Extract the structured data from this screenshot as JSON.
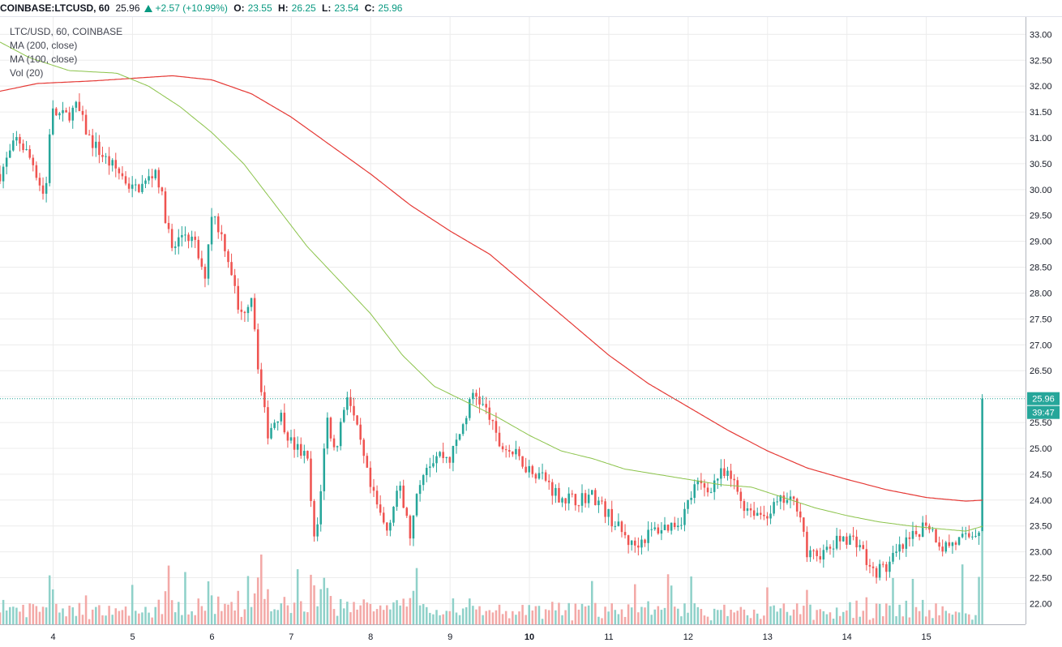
{
  "header": {
    "symbol": "COINBASE:LTCUSD, 60",
    "last": "25.96",
    "change": "+2.57 (+10.99%)",
    "open_label": "O:",
    "open": "23.55",
    "high_label": "H:",
    "high": "26.25",
    "low_label": "L:",
    "low": "23.54",
    "close_label": "C:",
    "close": "25.96"
  },
  "legend": {
    "title": "LTC/USD, 60, COINBASE",
    "ma200": "MA (200, close)",
    "ma100": "MA (100, close)",
    "vol": "Vol (20)"
  },
  "colors": {
    "up": "#26a69a",
    "down": "#ef5350",
    "vol_up": "#8fd1c9",
    "vol_down": "#f3a9a7",
    "ma200": "#e53935",
    "ma100": "#8bc34a",
    "price_label": "#26a69a",
    "grid": "#ececec"
  },
  "chart_data": {
    "type": "candlestick",
    "symbol": "LTC/USD",
    "interval": "60",
    "y_ticks": [
      "33.00",
      "32.50",
      "32.00",
      "31.50",
      "31.00",
      "30.50",
      "30.00",
      "29.50",
      "29.00",
      "28.50",
      "28.00",
      "27.50",
      "27.00",
      "26.50",
      "26.00",
      "25.50",
      "25.00",
      "24.50",
      "24.00",
      "23.50",
      "23.00",
      "22.50",
      "22.00"
    ],
    "ylim": [
      21.6,
      33.35
    ],
    "x_ticks": [
      {
        "label": "4",
        "day": 4,
        "bold": false
      },
      {
        "label": "5",
        "day": 5,
        "bold": false
      },
      {
        "label": "6",
        "day": 6,
        "bold": false
      },
      {
        "label": "7",
        "day": 7,
        "bold": false
      },
      {
        "label": "8",
        "day": 8,
        "bold": false
      },
      {
        "label": "9",
        "day": 9,
        "bold": false
      },
      {
        "label": "10",
        "day": 10,
        "bold": true
      },
      {
        "label": "11",
        "day": 11,
        "bold": false
      },
      {
        "label": "12",
        "day": 12,
        "bold": false
      },
      {
        "label": "13",
        "day": 13,
        "bold": false
      },
      {
        "label": "14",
        "day": 14,
        "bold": false
      },
      {
        "label": "15",
        "day": 15,
        "bold": false
      }
    ],
    "xlim_days": [
      3.33,
      16.25
    ],
    "close_keypoints": [
      [
        3.33,
        30.3
      ],
      [
        3.55,
        31.0
      ],
      [
        3.75,
        30.5
      ],
      [
        3.9,
        29.8
      ],
      [
        3.97,
        31.5
      ],
      [
        4.15,
        31.4
      ],
      [
        4.3,
        31.6
      ],
      [
        4.45,
        31.0
      ],
      [
        4.65,
        30.6
      ],
      [
        4.85,
        30.3
      ],
      [
        5.0,
        30.0
      ],
      [
        5.15,
        30.1
      ],
      [
        5.3,
        30.4
      ],
      [
        5.5,
        28.8
      ],
      [
        5.65,
        29.2
      ],
      [
        5.8,
        28.9
      ],
      [
        5.9,
        28.2
      ],
      [
        6.0,
        29.6
      ],
      [
        6.15,
        29.0
      ],
      [
        6.25,
        28.4
      ],
      [
        6.35,
        27.5
      ],
      [
        6.5,
        28.0
      ],
      [
        6.6,
        26.3
      ],
      [
        6.7,
        25.3
      ],
      [
        6.85,
        25.7
      ],
      [
        7.0,
        25.1
      ],
      [
        7.2,
        24.8
      ],
      [
        7.3,
        23.0
      ],
      [
        7.45,
        25.6
      ],
      [
        7.55,
        24.9
      ],
      [
        7.7,
        26.1
      ],
      [
        7.85,
        25.2
      ],
      [
        8.0,
        24.2
      ],
      [
        8.2,
        23.4
      ],
      [
        8.35,
        24.3
      ],
      [
        8.5,
        23.3
      ],
      [
        8.65,
        24.6
      ],
      [
        8.85,
        24.9
      ],
      [
        9.0,
        24.8
      ],
      [
        9.15,
        25.4
      ],
      [
        9.3,
        26.1
      ],
      [
        9.5,
        25.6
      ],
      [
        9.6,
        25.1
      ],
      [
        9.8,
        24.9
      ],
      [
        10.0,
        24.6
      ],
      [
        10.15,
        24.5
      ],
      [
        10.35,
        24.1
      ],
      [
        10.55,
        24.0
      ],
      [
        10.8,
        24.1
      ],
      [
        11.05,
        23.6
      ],
      [
        11.3,
        23.1
      ],
      [
        11.55,
        23.4
      ],
      [
        11.75,
        23.5
      ],
      [
        11.9,
        23.6
      ],
      [
        12.1,
        24.3
      ],
      [
        12.25,
        24.2
      ],
      [
        12.4,
        24.5
      ],
      [
        12.55,
        24.4
      ],
      [
        12.7,
        23.9
      ],
      [
        12.95,
        23.7
      ],
      [
        13.2,
        24.0
      ],
      [
        13.4,
        23.9
      ],
      [
        13.5,
        22.9
      ],
      [
        13.75,
        23.0
      ],
      [
        13.95,
        23.3
      ],
      [
        14.15,
        23.2
      ],
      [
        14.3,
        22.6
      ],
      [
        14.5,
        22.7
      ],
      [
        14.65,
        23.0
      ],
      [
        14.85,
        23.3
      ],
      [
        15.0,
        23.6
      ],
      [
        15.2,
        23.1
      ],
      [
        15.4,
        23.2
      ],
      [
        15.55,
        23.3
      ],
      [
        15.7,
        23.5
      ],
      [
        15.72,
        25.96
      ]
    ],
    "ma200_keypoints": [
      [
        3.33,
        31.9
      ],
      [
        3.8,
        32.05
      ],
      [
        4.5,
        32.1
      ],
      [
        5.5,
        32.2
      ],
      [
        6.0,
        32.12
      ],
      [
        6.5,
        31.85
      ],
      [
        7.0,
        31.4
      ],
      [
        7.5,
        30.85
      ],
      [
        8.0,
        30.3
      ],
      [
        8.5,
        29.7
      ],
      [
        9.0,
        29.2
      ],
      [
        9.5,
        28.75
      ],
      [
        10.0,
        28.1
      ],
      [
        10.5,
        27.45
      ],
      [
        11.0,
        26.8
      ],
      [
        11.5,
        26.25
      ],
      [
        12.0,
        25.8
      ],
      [
        12.5,
        25.35
      ],
      [
        13.0,
        24.95
      ],
      [
        13.5,
        24.62
      ],
      [
        14.0,
        24.4
      ],
      [
        14.5,
        24.2
      ],
      [
        15.0,
        24.05
      ],
      [
        15.5,
        23.98
      ],
      [
        15.72,
        24.0
      ]
    ],
    "ma100_keypoints": [
      [
        3.33,
        32.85
      ],
      [
        3.7,
        32.55
      ],
      [
        4.2,
        32.3
      ],
      [
        4.8,
        32.25
      ],
      [
        5.2,
        32.0
      ],
      [
        5.6,
        31.6
      ],
      [
        6.0,
        31.1
      ],
      [
        6.4,
        30.5
      ],
      [
        6.8,
        29.7
      ],
      [
        7.2,
        28.9
      ],
      [
        7.6,
        28.25
      ],
      [
        8.0,
        27.6
      ],
      [
        8.4,
        26.8
      ],
      [
        8.8,
        26.2
      ],
      [
        9.2,
        25.9
      ],
      [
        9.6,
        25.6
      ],
      [
        10.0,
        25.25
      ],
      [
        10.4,
        24.95
      ],
      [
        10.8,
        24.8
      ],
      [
        11.2,
        24.6
      ],
      [
        11.6,
        24.5
      ],
      [
        12.0,
        24.4
      ],
      [
        12.4,
        24.3
      ],
      [
        12.8,
        24.25
      ],
      [
        13.2,
        24.05
      ],
      [
        13.6,
        23.85
      ],
      [
        14.0,
        23.7
      ],
      [
        14.4,
        23.58
      ],
      [
        14.8,
        23.5
      ],
      [
        15.2,
        23.44
      ],
      [
        15.5,
        23.4
      ],
      [
        15.72,
        23.5
      ]
    ],
    "last_price": "25.96",
    "countdown": "39:47"
  }
}
